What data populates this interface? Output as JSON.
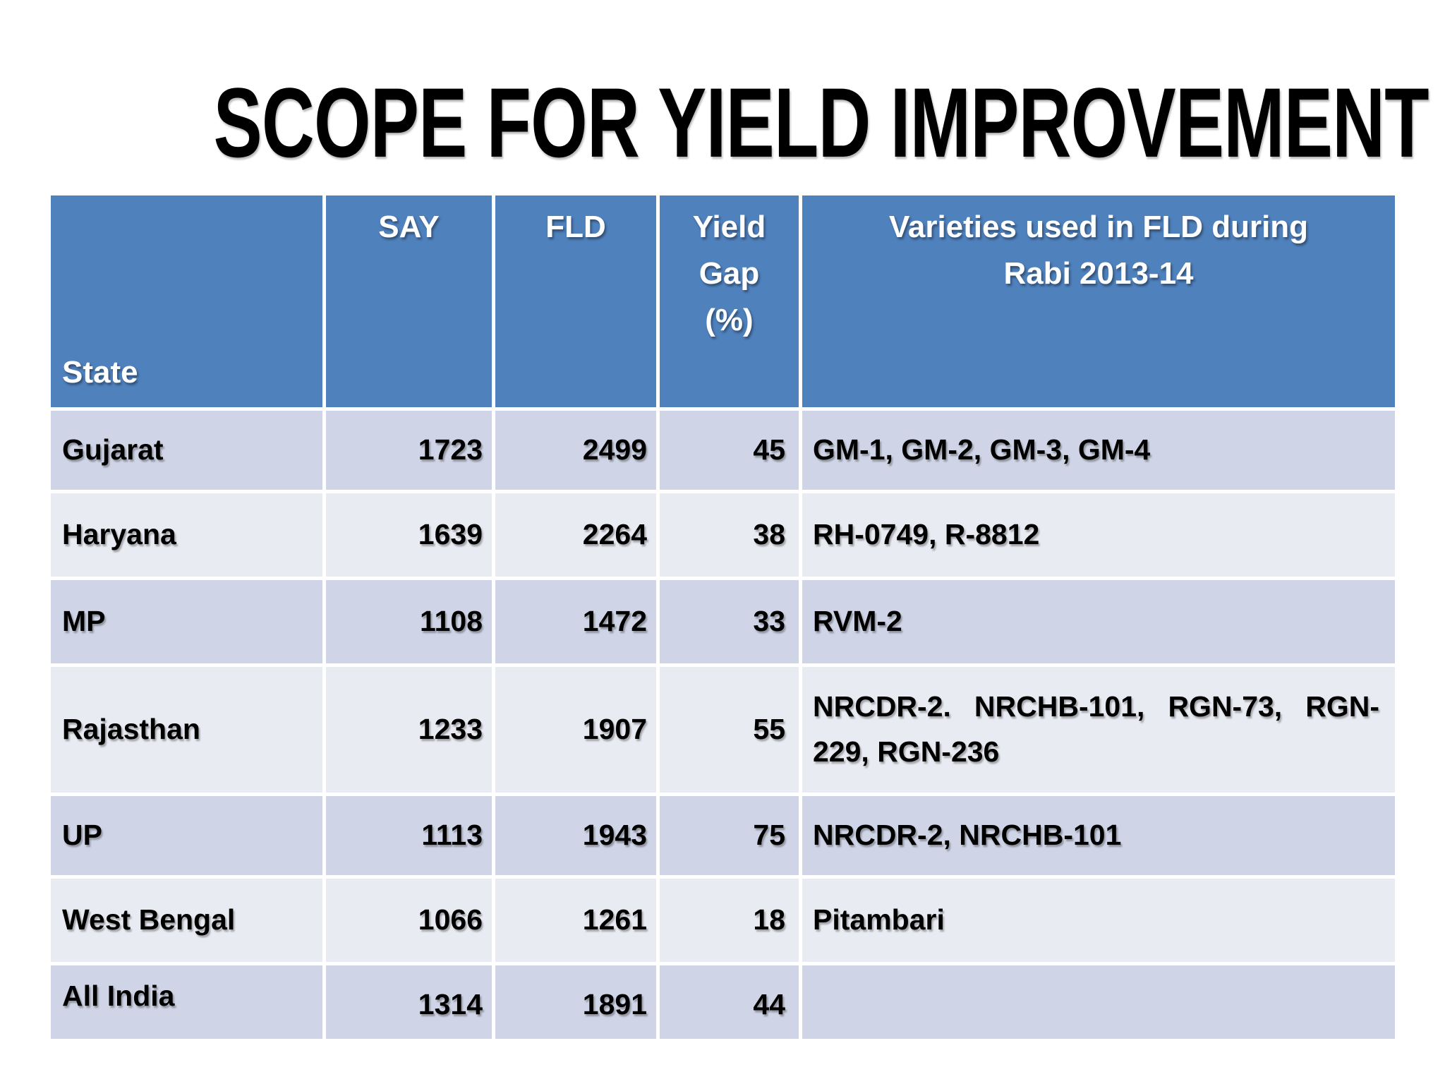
{
  "slide_title": "SCOPE FOR YIELD IMPROVEMENT",
  "table": {
    "headers": {
      "state": "State",
      "say": "SAY",
      "fld": "FLD",
      "yield_gap": "Yield\nGap\n(%)",
      "varieties": "Varieties used in FLD during\nRabi 2013-14"
    },
    "rows": [
      {
        "state": "Gujarat",
        "say": "1723",
        "fld": "2499",
        "yield_gap": "45",
        "varieties": "GM-1, GM-2, GM-3, GM-4"
      },
      {
        "state": "Haryana",
        "say": "1639",
        "fld": "2264",
        "yield_gap": "38",
        "varieties": "RH-0749, R-8812"
      },
      {
        "state": "MP",
        "say": "1108",
        "fld": "1472",
        "yield_gap": "33",
        "varieties": "RVM-2"
      },
      {
        "state": "Rajasthan",
        "say": "1233",
        "fld": "1907",
        "yield_gap": "55",
        "varieties": "NRCDR-2. NRCHB-101, RGN-73, RGN-229, RGN-236"
      },
      {
        "state": "UP",
        "say": "1113",
        "fld": "1943",
        "yield_gap": "75",
        "varieties": "NRCDR-2, NRCHB-101"
      },
      {
        "state": "West Bengal",
        "say": "1066",
        "fld": "1261",
        "yield_gap": "18",
        "varieties": "Pitambari"
      },
      {
        "state": "All India",
        "say": "1314",
        "fld": "1891",
        "yield_gap": "44",
        "varieties": ""
      }
    ],
    "colors": {
      "header_bg": "#4F81BD",
      "band_dark": "#CFD5E6",
      "band_light": "#E9EBF3",
      "header_text": "#FFFFFF",
      "body_text": "#000000"
    }
  }
}
